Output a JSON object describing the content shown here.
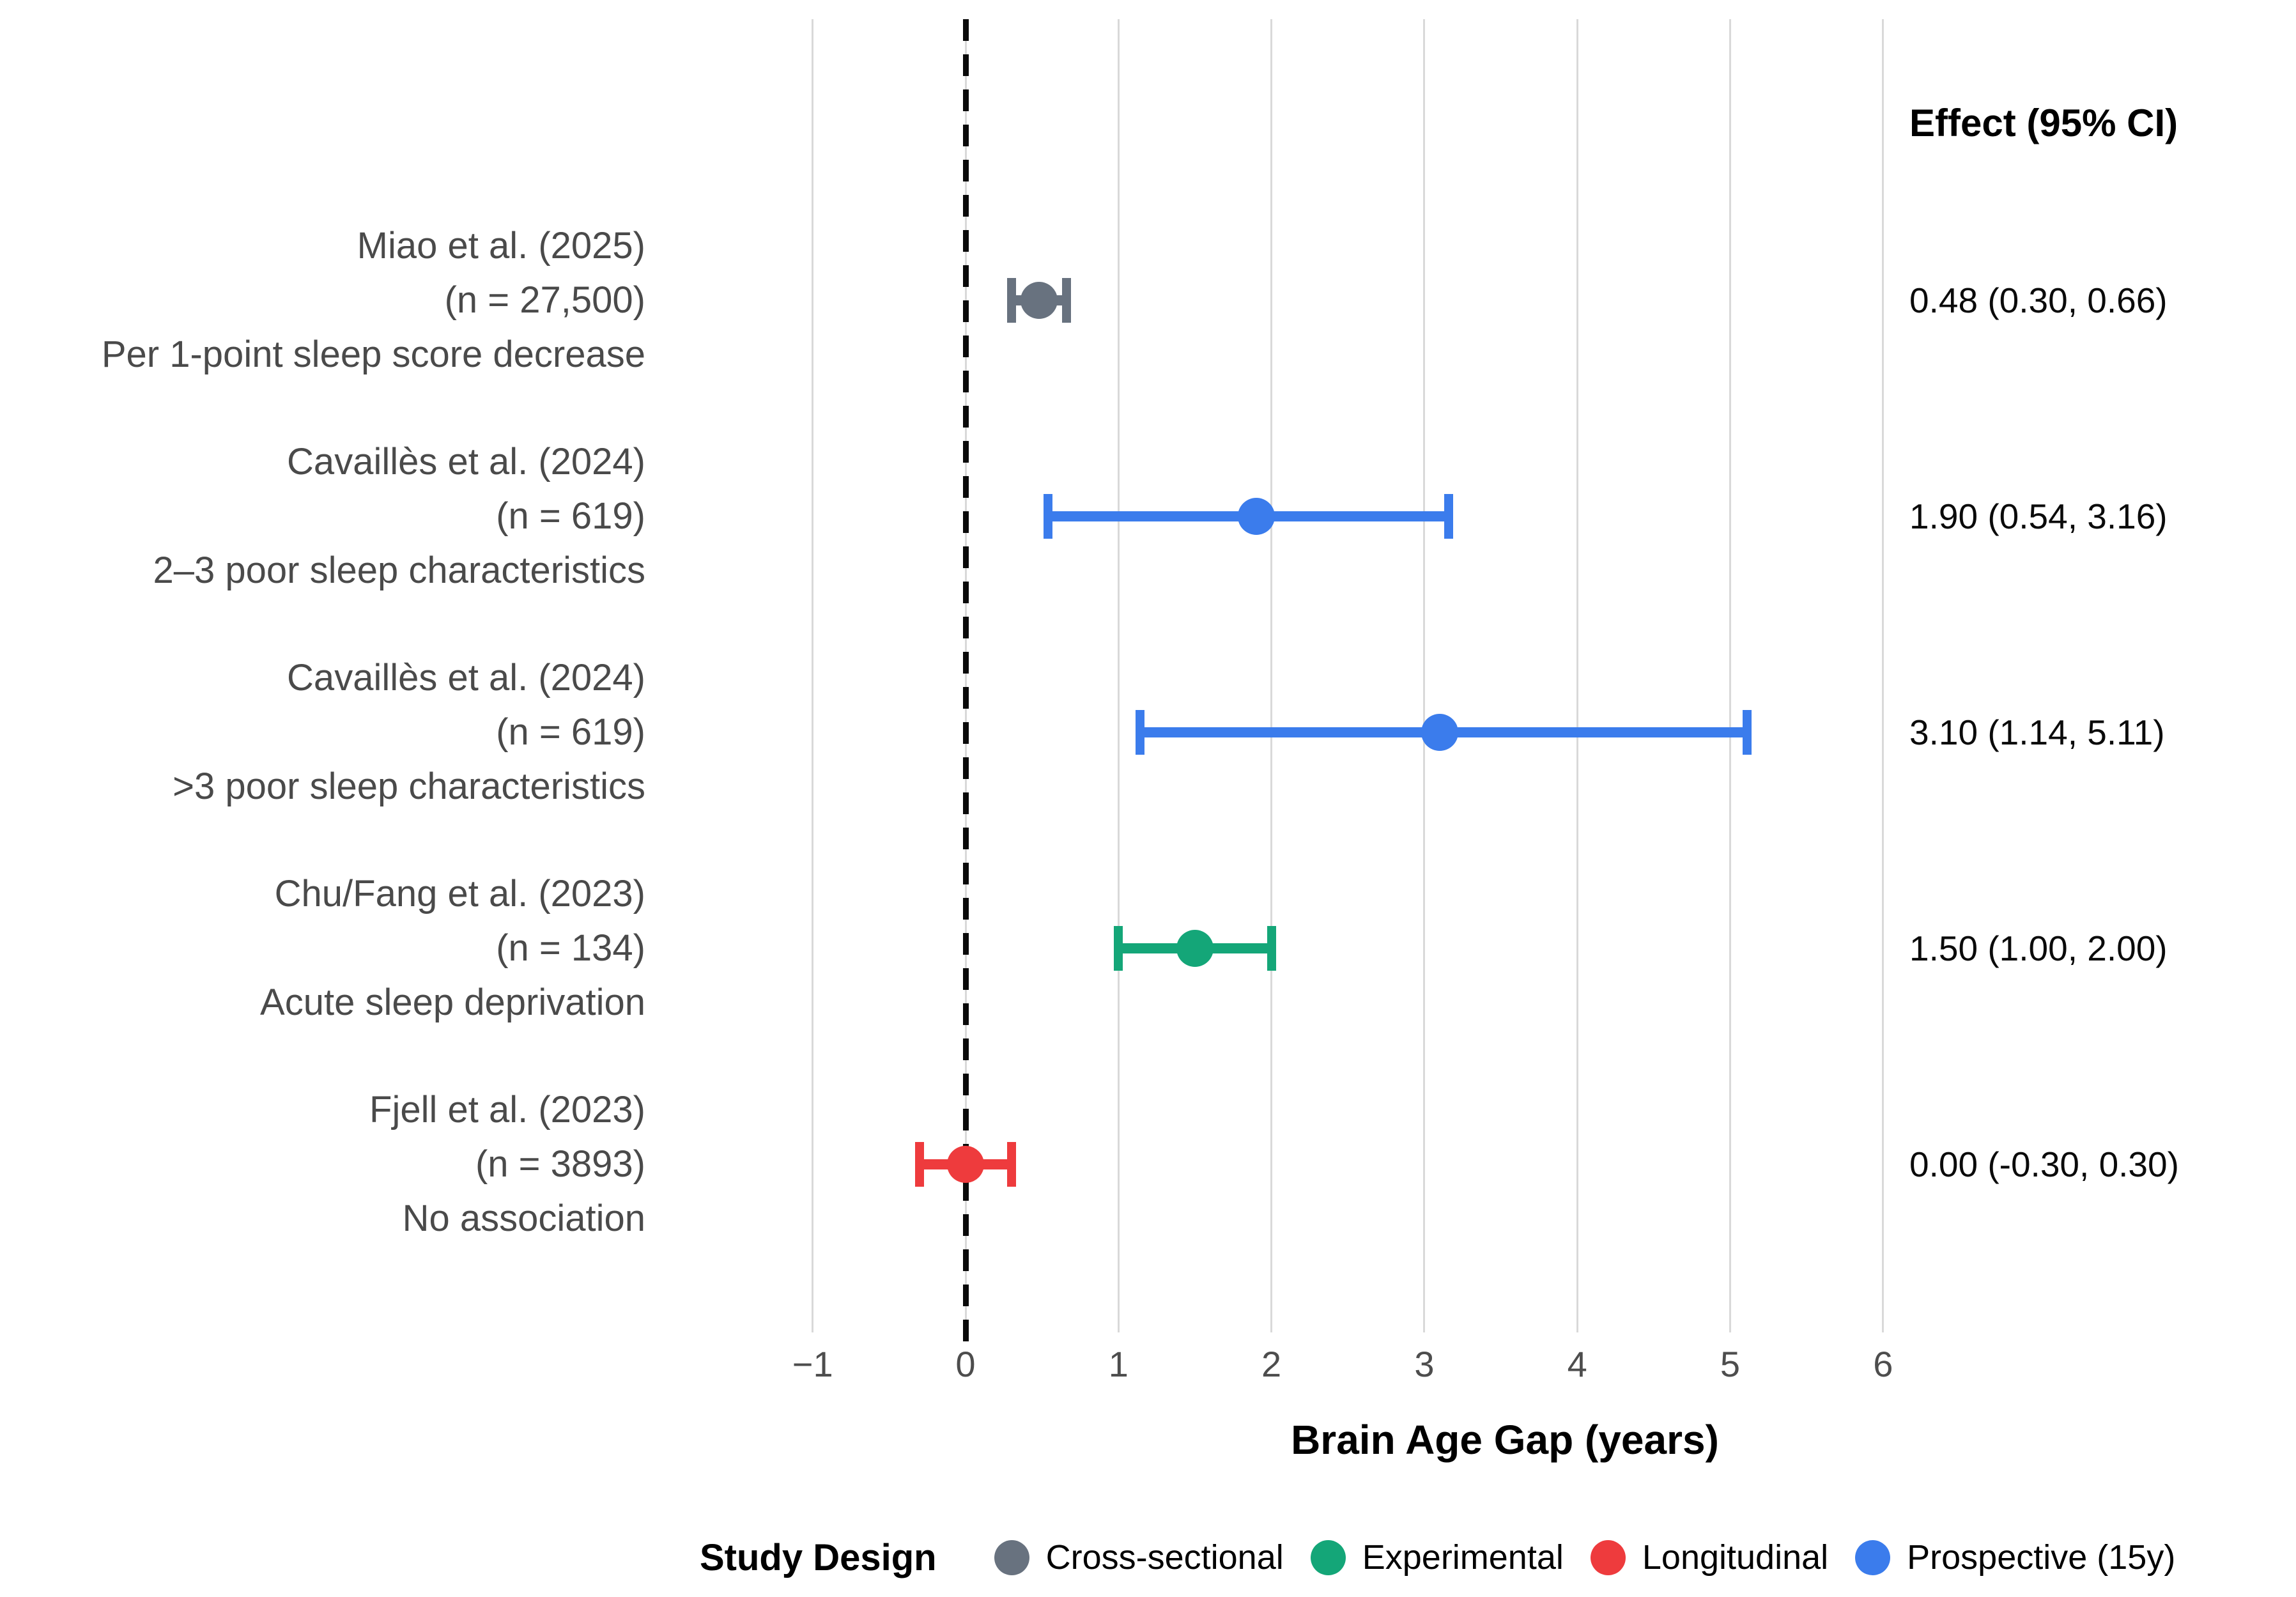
{
  "chart_data": {
    "type": "forest",
    "title": "",
    "xlabel": "Brain Age Gap (years)",
    "effect_header": "Effect (95% CI)",
    "xlim": [
      -1.6,
      6.6
    ],
    "grid": true,
    "legend_position": "bottom",
    "zero_line_x": 0,
    "x_ticks": [
      {
        "value": -1,
        "label": "−1"
      },
      {
        "value": 0,
        "label": "0"
      },
      {
        "value": 1,
        "label": "1"
      },
      {
        "value": 2,
        "label": "2"
      },
      {
        "value": 3,
        "label": "3"
      },
      {
        "value": 4,
        "label": "4"
      },
      {
        "value": 5,
        "label": "5"
      },
      {
        "value": 6,
        "label": "6"
      }
    ],
    "studies": [
      {
        "label_lines": [
          "Miao et al. (2025)",
          "(n = 27,500)",
          "Per 1-point sleep score decrease"
        ],
        "effect": 0.48,
        "ci_low": 0.3,
        "ci_high": 0.66,
        "effect_label": "0.48 (0.30, 0.66)",
        "design": "Cross-sectional",
        "color": "#68727f"
      },
      {
        "label_lines": [
          "Cavaillès et al. (2024)",
          "(n = 619)",
          "2–3 poor sleep characteristics"
        ],
        "effect": 1.9,
        "ci_low": 0.54,
        "ci_high": 3.16,
        "effect_label": "1.90 (0.54, 3.16)",
        "design": "Prospective (15y)",
        "color": "#3b7cec"
      },
      {
        "label_lines": [
          "Cavaillès et al. (2024)",
          "(n = 619)",
          ">3 poor sleep characteristics"
        ],
        "effect": 3.1,
        "ci_low": 1.14,
        "ci_high": 5.11,
        "effect_label": "3.10 (1.14, 5.11)",
        "design": "Prospective (15y)",
        "color": "#3b7cec"
      },
      {
        "label_lines": [
          "Chu/Fang et al. (2023)",
          "(n = 134)",
          "Acute sleep deprivation"
        ],
        "effect": 1.5,
        "ci_low": 1.0,
        "ci_high": 2.0,
        "effect_label": "1.50 (1.00, 2.00)",
        "design": "Experimental",
        "color": "#14a678"
      },
      {
        "label_lines": [
          "Fjell et al. (2023)",
          "(n = 3893)",
          "No association"
        ],
        "effect": 0.0,
        "ci_low": -0.3,
        "ci_high": 0.3,
        "effect_label": "0.00 (-0.30, 0.30)",
        "design": "Longitudinal",
        "color": "#ee3b3d"
      }
    ],
    "legend": {
      "title": "Study Design",
      "items": [
        {
          "label": "Cross-sectional",
          "color": "#68727f"
        },
        {
          "label": "Experimental",
          "color": "#14a678"
        },
        {
          "label": "Longitudinal",
          "color": "#ee3b3d"
        },
        {
          "label": "Prospective (15y)",
          "color": "#3b7cec"
        }
      ]
    },
    "colors": {
      "gridline": "#d9d9d9",
      "zero_line": "#0a0a0a",
      "label_text": "#4a4a4a",
      "tick_text": "#4d4d4d",
      "effect_text": "#0a0a0a"
    }
  }
}
